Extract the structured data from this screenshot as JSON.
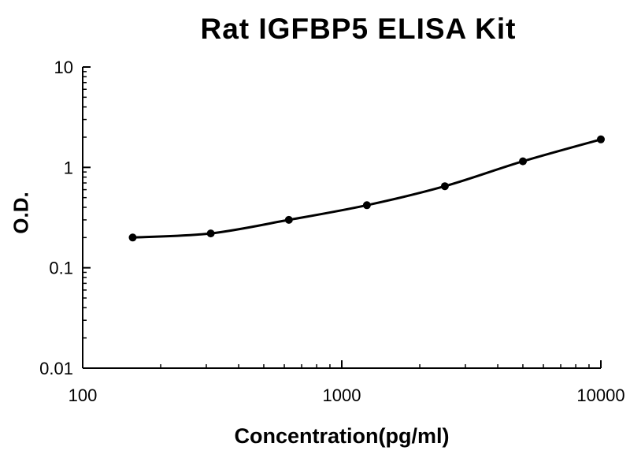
{
  "title": "Rat IGFBP5 ELISA Kit",
  "chart_data": {
    "type": "line",
    "title": "Rat IGFBP5 ELISA Kit",
    "xlabel": "Concentration(pg/ml)",
    "ylabel": "O.D.",
    "xscale": "log",
    "yscale": "log",
    "xlim": [
      100,
      10000
    ],
    "ylim": [
      0.01,
      10
    ],
    "grid": false,
    "legend": "none",
    "line_color": "#000000",
    "marker": "filled-circle",
    "x": [
      156,
      312,
      625,
      1250,
      2500,
      5000,
      10000
    ],
    "y": [
      0.2,
      0.22,
      0.3,
      0.42,
      0.65,
      1.15,
      1.9
    ],
    "x_ticks": [
      {
        "value": 100,
        "label": "100"
      },
      {
        "value": 1000,
        "label": "1000"
      },
      {
        "value": 10000,
        "label": "10000"
      }
    ],
    "y_ticks": [
      {
        "value": 10,
        "label": "10"
      },
      {
        "value": 1,
        "label": "1"
      },
      {
        "value": 0.1,
        "label": "0.1"
      },
      {
        "value": 0.01,
        "label": "0.01"
      }
    ]
  }
}
